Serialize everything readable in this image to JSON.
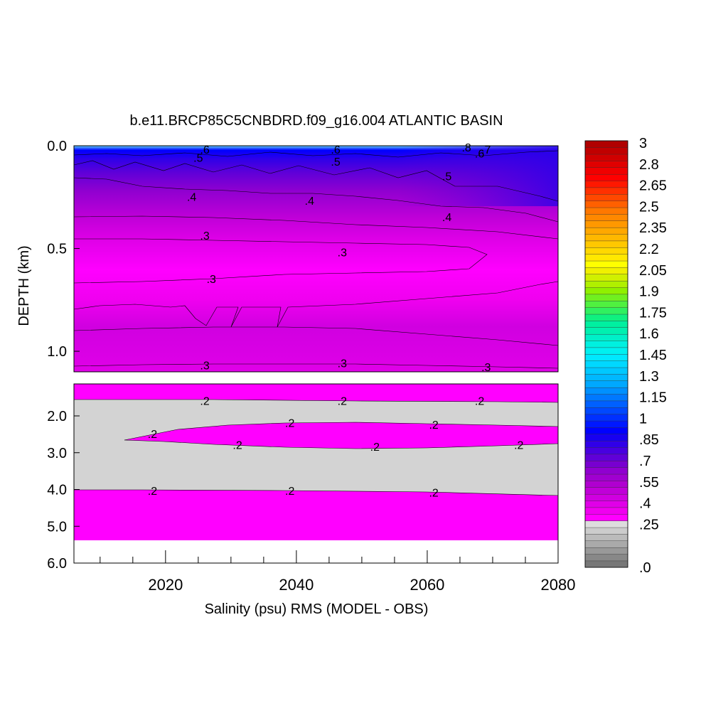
{
  "chart_data": {
    "type": "heatmap",
    "title": "b.e11.BRCP85C5CNBDRD.f09_g16.004 ATLANTIC BASIN",
    "xlabel": "Salinity (psu) RMS (MODEL - OBS)",
    "ylabel": "DEPTH (km)",
    "xlim": [
      2006,
      2080
    ],
    "x_ticks": [
      "2020",
      "2040",
      "2060",
      "2080"
    ],
    "upper_panel": {
      "ylim": [
        0.0,
        1.1
      ],
      "y_ticks": [
        "0.0",
        "0.5",
        "1.0"
      ],
      "bands": [
        {
          "depth_top": 0.0,
          "depth_bottom": 0.02,
          "value": 0.85
        },
        {
          "depth_top": 0.02,
          "depth_bottom": 0.05,
          "value": 0.7
        },
        {
          "depth_top": 0.05,
          "depth_bottom": 0.1,
          "value": 0.55
        },
        {
          "depth_top": 0.1,
          "depth_bottom": 0.2,
          "value": 0.5
        },
        {
          "depth_top": 0.2,
          "depth_bottom": 0.34,
          "value": 0.4
        },
        {
          "depth_top": 0.34,
          "depth_bottom": 0.46,
          "value": 0.3
        },
        {
          "depth_top": 0.46,
          "depth_bottom": 0.62,
          "value": 0.25
        },
        {
          "depth_top": 0.62,
          "depth_bottom": 0.78,
          "value": 0.3
        },
        {
          "depth_top": 0.78,
          "depth_bottom": 0.88,
          "value": 0.33
        },
        {
          "depth_top": 0.88,
          "depth_bottom": 1.1,
          "value": 0.3
        }
      ],
      "contour_labels": [
        {
          "x": 2026,
          "y": 0.02,
          "text": ".6"
        },
        {
          "x": 2046,
          "y": 0.02,
          "text": ".6"
        },
        {
          "x": 2066,
          "y": 0.01,
          "text": ".8"
        },
        {
          "x": 2069,
          "y": 0.02,
          "text": ".7"
        },
        {
          "x": 2068,
          "y": 0.04,
          "text": ".6"
        },
        {
          "x": 2025,
          "y": 0.06,
          "text": ".5"
        },
        {
          "x": 2046,
          "y": 0.08,
          "text": ".5"
        },
        {
          "x": 2063,
          "y": 0.15,
          "text": ".5"
        },
        {
          "x": 2024,
          "y": 0.25,
          "text": ".4"
        },
        {
          "x": 2042,
          "y": 0.27,
          "text": ".4"
        },
        {
          "x": 2063,
          "y": 0.35,
          "text": ".4"
        },
        {
          "x": 2026,
          "y": 0.44,
          "text": ".3"
        },
        {
          "x": 2047,
          "y": 0.52,
          "text": ".3"
        },
        {
          "x": 2027,
          "y": 0.65,
          "text": ".3"
        },
        {
          "x": 2026,
          "y": 1.07,
          "text": ".3"
        },
        {
          "x": 2047,
          "y": 1.06,
          "text": ".3"
        },
        {
          "x": 2069,
          "y": 1.08,
          "text": ".3"
        }
      ]
    },
    "lower_panel": {
      "ylim": [
        1.1,
        6.0
      ],
      "y_ticks": [
        "2.0",
        "3.0",
        "4.0",
        "5.0",
        "6.0"
      ],
      "contour_labels": [
        {
          "x": 2026,
          "y": 1.6,
          "text": ".2"
        },
        {
          "x": 2047,
          "y": 1.6,
          "text": ".2"
        },
        {
          "x": 2068,
          "y": 1.6,
          "text": ".2"
        },
        {
          "x": 2039,
          "y": 2.2,
          "text": ".2"
        },
        {
          "x": 2061,
          "y": 2.25,
          "text": ".2"
        },
        {
          "x": 2018,
          "y": 2.5,
          "text": ".2"
        },
        {
          "x": 2031,
          "y": 2.8,
          "text": ".2"
        },
        {
          "x": 2052,
          "y": 2.85,
          "text": ".2"
        },
        {
          "x": 2074,
          "y": 2.8,
          "text": ".2"
        },
        {
          "x": 2018,
          "y": 4.05,
          "text": ".2"
        },
        {
          "x": 2039,
          "y": 4.05,
          "text": ".2"
        },
        {
          "x": 2061,
          "y": 4.1,
          "text": ".2"
        }
      ]
    },
    "colorbar": {
      "labels": [
        "3",
        "2.8",
        "2.65",
        "2.5",
        "2.35",
        "2.2",
        "2.05",
        "1.9",
        "1.75",
        "1.6",
        "1.45",
        "1.3",
        "1.15",
        "1",
        ".85",
        ".7",
        ".55",
        ".4",
        ".25",
        ".0"
      ],
      "colors_bottom_to_top": [
        "#777777",
        "#888888",
        "#999999",
        "#aaaaaa",
        "#bbbbbb",
        "#cccccc",
        "#dddddd",
        "#ff00ff",
        "#f000f0",
        "#e000e8",
        "#d000e0",
        "#c000d8",
        "#b000d0",
        "#a000d0",
        "#9000d0",
        "#7800d0",
        "#6000d8",
        "#4800e0",
        "#3000e8",
        "#1800f0",
        "#0000ff",
        "#0018ff",
        "#0030ff",
        "#0048ff",
        "#0060ff",
        "#0078ff",
        "#0090ff",
        "#00a8ff",
        "#00b8ff",
        "#00c8ff",
        "#00d8ff",
        "#00e8ff",
        "#00f0f0",
        "#00f0e0",
        "#00f0c8",
        "#00f0b0",
        "#00f0a0",
        "#10f080",
        "#30f060",
        "#50f040",
        "#70f020",
        "#90f000",
        "#b0f000",
        "#d0f000",
        "#f0f000",
        "#ffff00",
        "#ffe800",
        "#ffd800",
        "#ffc800",
        "#ffb800",
        "#ffa800",
        "#ff9800",
        "#ff8800",
        "#ff7800",
        "#ff6000",
        "#ff4800",
        "#ff3000",
        "#ff1800",
        "#ff0000",
        "#f00000",
        "#e00000",
        "#d00000",
        "#c00000",
        "#b00000"
      ]
    }
  }
}
